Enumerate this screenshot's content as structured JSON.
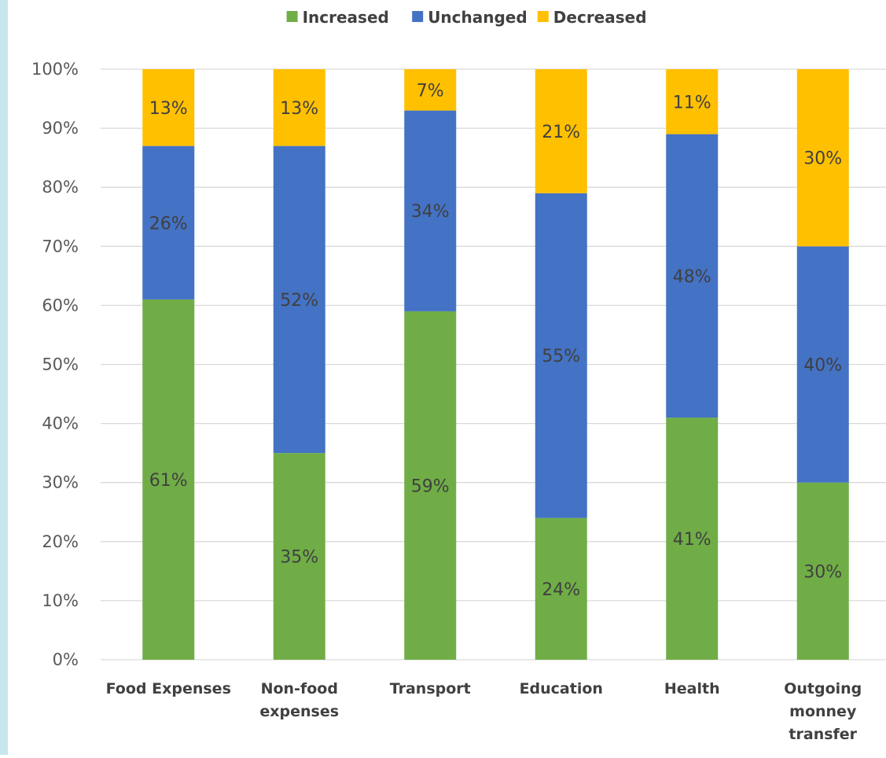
{
  "chart_data": {
    "type": "bar",
    "stacked": true,
    "title": "",
    "xlabel": "",
    "ylabel": "",
    "ylim": [
      0,
      100
    ],
    "yticks": [
      "0%",
      "10%",
      "20%",
      "30%",
      "40%",
      "50%",
      "60%",
      "70%",
      "80%",
      "90%",
      "100%"
    ],
    "categories": [
      [
        "Food Expenses"
      ],
      [
        "Non-food",
        "expenses"
      ],
      [
        "Transport"
      ],
      [
        "Education"
      ],
      [
        "Health"
      ],
      [
        "Outgoing",
        "monney",
        "transfer"
      ]
    ],
    "legend_position": "top",
    "grid": true,
    "series": [
      {
        "name": "Increased",
        "color": "#70ad47",
        "values": [
          61,
          35,
          59,
          24,
          41,
          30
        ],
        "labels": [
          "61%",
          "35%",
          "59%",
          "24%",
          "41%",
          "30%"
        ]
      },
      {
        "name": "Unchanged",
        "color": "#4472c4",
        "values": [
          26,
          52,
          34,
          55,
          48,
          40
        ],
        "labels": [
          "26%",
          "52%",
          "34%",
          "55%",
          "48%",
          "40%"
        ]
      },
      {
        "name": "Decreased",
        "color": "#ffc000",
        "values": [
          13,
          13,
          7,
          21,
          11,
          30
        ],
        "labels": [
          "13%",
          "13%",
          "7%",
          "21%",
          "11%",
          "30%"
        ]
      }
    ]
  }
}
